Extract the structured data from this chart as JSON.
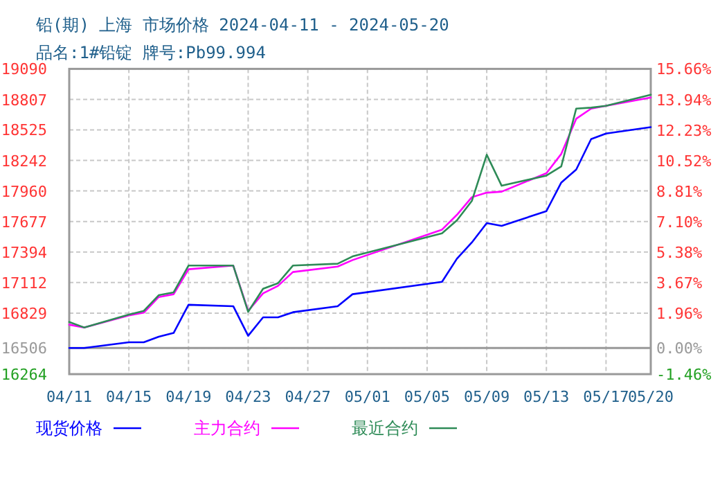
{
  "chart_data": {
    "type": "line",
    "title": "铅(期) 上海 市场价格 2024-04-11 - 2024-05-20",
    "subtitle": "品名:1#铅锭 牌号:Pb99.994",
    "x": [
      "--04-11",
      "--04-12",
      "--04-15",
      "--04-16",
      "--04-17",
      "--04-18",
      "--04-19",
      "--04-22",
      "--04-23",
      "--04-24",
      "--04-25",
      "--04-26",
      "--04-29",
      "--04-30",
      "--05-06",
      "--05-07",
      "--05-08",
      "--05-09",
      "--05-10",
      "--05-13",
      "--05-14",
      "--05-15",
      "--05-16",
      "--05-17",
      "--05-20"
    ],
    "series": [
      {
        "name": "现货价格",
        "color": "#0000ff",
        "values": [
          16506,
          16506,
          16559,
          16559,
          16610,
          16645,
          16906,
          16893,
          16619,
          16790,
          16790,
          16837,
          16893,
          17004,
          17119,
          17333,
          17483,
          17662,
          17637,
          17773,
          18038,
          18158,
          18440,
          18491,
          18551
        ]
      },
      {
        "name": "主力合约",
        "color": "#ff00ff",
        "values": [
          16722,
          16696,
          16807,
          16833,
          16978,
          17004,
          17235,
          17269,
          16850,
          17012,
          17081,
          17209,
          17260,
          17320,
          17602,
          17739,
          17902,
          17944,
          17953,
          18124,
          18303,
          18628,
          18722,
          18748,
          18825
        ]
      },
      {
        "name": "最近合约",
        "color": "#2e8b57",
        "values": [
          16747,
          16696,
          16816,
          16850,
          16995,
          17021,
          17269,
          17269,
          16841,
          17055,
          17106,
          17269,
          17286,
          17354,
          17568,
          17688,
          17867,
          18295,
          18008,
          18102,
          18188,
          18722,
          18731,
          18748,
          18851
        ]
      }
    ],
    "xlim": [
      "--04-11",
      "--05-20"
    ],
    "xticks": [
      {
        "value": "--04-11",
        "label": "04/11"
      },
      {
        "value": "--04-15",
        "label": "04/15"
      },
      {
        "value": "--04-19",
        "label": "04/19"
      },
      {
        "value": "--04-23",
        "label": "04/23"
      },
      {
        "value": "--04-27",
        "label": "04/27"
      },
      {
        "value": "--05-01",
        "label": "05/01"
      },
      {
        "value": "--05-05",
        "label": "05/05"
      },
      {
        "value": "--05-09",
        "label": "05/09"
      },
      {
        "value": "--05-13",
        "label": "05/13"
      },
      {
        "value": "--05-17",
        "label": "05/17"
      },
      {
        "value": "--05-20",
        "label": "05/20"
      }
    ],
    "ylim": [
      16264,
      19090
    ],
    "yticks": [
      16264,
      16506,
      16829,
      17112,
      17394,
      17677,
      17960,
      18242,
      18525,
      18807,
      19090
    ],
    "y2lim": [
      -1.46,
      15.66
    ],
    "y2ticks": [
      {
        "value": -1.46,
        "label": "-1.46%"
      },
      {
        "value": 0,
        "label": "0.00%"
      },
      {
        "value": 1.96,
        "label": "1.96%"
      },
      {
        "value": 3.67,
        "label": "3.67%"
      },
      {
        "value": 5.38,
        "label": "5.38%"
      },
      {
        "value": 7.1,
        "label": "7.10%"
      },
      {
        "value": 8.81,
        "label": "8.81%"
      },
      {
        "value": 10.52,
        "label": "10.52%"
      },
      {
        "value": 12.23,
        "label": "12.23%"
      },
      {
        "value": 13.94,
        "label": "13.94%"
      },
      {
        "value": 15.66,
        "label": "15.66%"
      }
    ],
    "ref_lines": [
      {
        "axis": "y",
        "value": 16506,
        "color": "#999999",
        "line_style": "solid"
      }
    ],
    "grid": true,
    "legend": "bottom",
    "marker": "none",
    "line_style": "solid"
  }
}
